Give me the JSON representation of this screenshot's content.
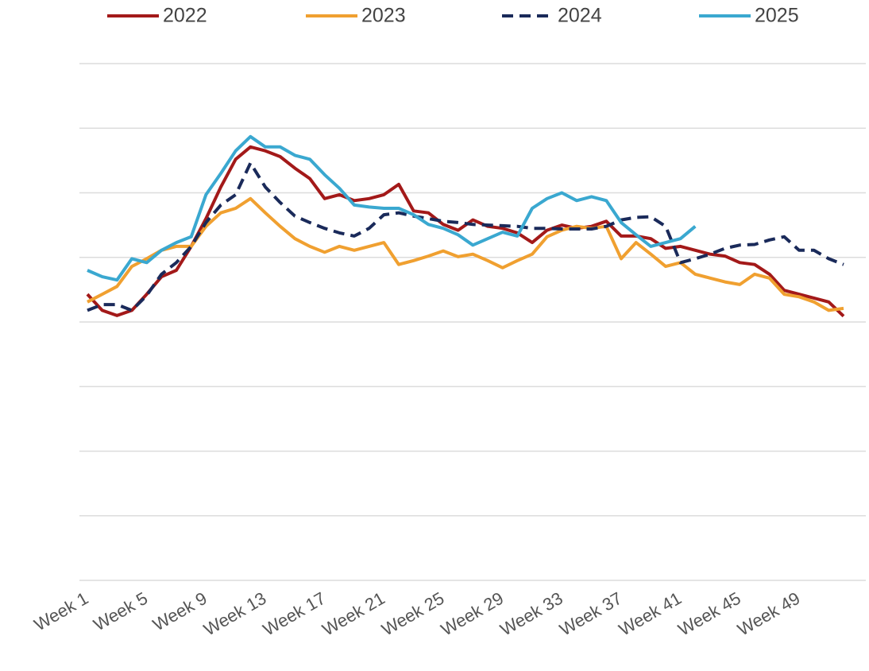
{
  "chart_data": {
    "type": "line",
    "categories": [
      "Week 1",
      null,
      null,
      null,
      "Week 5",
      null,
      null,
      null,
      "Week 9",
      null,
      null,
      null,
      "Week 13",
      null,
      null,
      null,
      "Week 17",
      null,
      null,
      null,
      "Week 21",
      null,
      null,
      null,
      "Week 25",
      null,
      null,
      null,
      "Week 29",
      null,
      null,
      null,
      "Week 33",
      null,
      null,
      null,
      "Week 37",
      null,
      null,
      null,
      "Week 41",
      null,
      null,
      null,
      "Week 45",
      null,
      null,
      null,
      "Week 49",
      null,
      null,
      null
    ],
    "series": [
      {
        "name": "2022",
        "color": "#a31919",
        "dash": false,
        "values": [
          4.43,
          4.18,
          4.1,
          4.18,
          4.43,
          4.7,
          4.8,
          5.17,
          5.6,
          6.09,
          6.52,
          6.71,
          6.65,
          6.56,
          6.38,
          6.22,
          5.91,
          5.97,
          5.88,
          5.91,
          5.97,
          6.13,
          5.72,
          5.69,
          5.51,
          5.42,
          5.58,
          5.48,
          5.45,
          5.38,
          5.23,
          5.42,
          5.5,
          5.45,
          5.48,
          5.56,
          5.33,
          5.33,
          5.29,
          5.14,
          5.17,
          5.11,
          5.05,
          5.02,
          4.92,
          4.89,
          4.74,
          4.49,
          4.43,
          4.37,
          4.31,
          4.09
        ]
      },
      {
        "name": "2023",
        "color": "#f0a030",
        "dash": false,
        "values": [
          4.31,
          4.43,
          4.55,
          4.86,
          4.98,
          5.11,
          5.17,
          5.17,
          5.48,
          5.69,
          5.76,
          5.91,
          5.69,
          5.48,
          5.29,
          5.17,
          5.08,
          5.17,
          5.11,
          5.17,
          5.23,
          4.89,
          4.95,
          5.02,
          5.1,
          5.01,
          5.05,
          4.95,
          4.84,
          4.95,
          5.05,
          5.32,
          5.42,
          5.48,
          5.45,
          5.48,
          4.98,
          5.23,
          5.05,
          4.86,
          4.92,
          4.74,
          4.68,
          4.62,
          4.58,
          4.74,
          4.68,
          4.43,
          4.39,
          4.31,
          4.18,
          4.21
        ]
      },
      {
        "name": "2024",
        "color": "#1a2a5a",
        "dash": true,
        "values": [
          4.18,
          4.27,
          4.27,
          4.18,
          4.41,
          4.74,
          4.92,
          5.17,
          5.54,
          5.81,
          5.97,
          6.46,
          6.09,
          5.85,
          5.64,
          5.54,
          5.45,
          5.38,
          5.33,
          5.45,
          5.66,
          5.69,
          5.64,
          5.6,
          5.56,
          5.54,
          5.51,
          5.5,
          5.49,
          5.48,
          5.45,
          5.45,
          5.44,
          5.44,
          5.44,
          5.48,
          5.58,
          5.62,
          5.63,
          5.48,
          4.92,
          4.98,
          5.05,
          5.14,
          5.19,
          5.2,
          5.27,
          5.32,
          5.11,
          5.11,
          4.98,
          4.89
        ]
      },
      {
        "name": "2025",
        "color": "#3aa8d0",
        "dash": false,
        "values": [
          4.8,
          4.7,
          4.65,
          4.98,
          4.92,
          5.11,
          5.23,
          5.32,
          5.97,
          6.3,
          6.65,
          6.87,
          6.71,
          6.71,
          6.58,
          6.52,
          6.28,
          6.07,
          5.81,
          5.78,
          5.76,
          5.76,
          5.66,
          5.51,
          5.45,
          5.35,
          5.19,
          5.29,
          5.39,
          5.33,
          5.76,
          5.91,
          6.0,
          5.88,
          5.94,
          5.88,
          5.54,
          5.35,
          5.17,
          5.23,
          5.29,
          5.48,
          null,
          null,
          null,
          null,
          null,
          null,
          null,
          null,
          null,
          null
        ]
      }
    ],
    "ylim": [
      0,
      8
    ],
    "yticks": [
      0,
      1,
      2,
      3,
      4,
      5,
      6,
      7,
      8
    ],
    "ytick_labels": false,
    "grid": true,
    "legend": "top"
  }
}
